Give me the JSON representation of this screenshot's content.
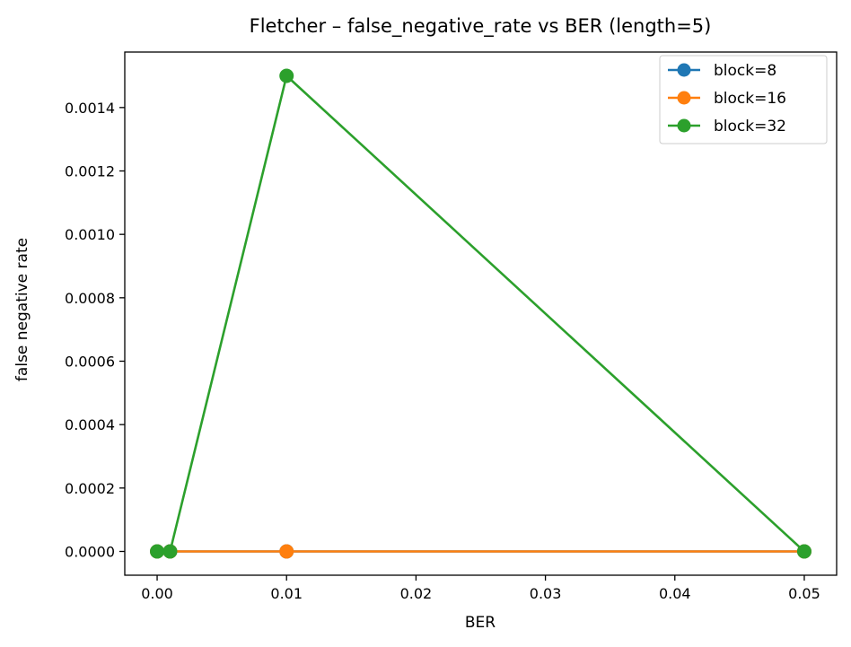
{
  "chart_data": {
    "type": "line",
    "title": "Fletcher – false_negative_rate vs BER (length=5)",
    "xlabel": "BER",
    "ylabel": "false negative rate",
    "xlim": [
      -0.0025,
      0.0525
    ],
    "ylim": [
      -7.5e-05,
      0.001575
    ],
    "xticks": [
      0.0,
      0.01,
      0.02,
      0.03,
      0.04,
      0.05
    ],
    "xtick_labels": [
      "0.00",
      "0.01",
      "0.02",
      "0.03",
      "0.04",
      "0.05"
    ],
    "yticks": [
      0.0,
      0.0002,
      0.0004,
      0.0006,
      0.0008,
      0.001,
      0.0012,
      0.0014
    ],
    "ytick_labels": [
      "0.0000",
      "0.0002",
      "0.0004",
      "0.0006",
      "0.0008",
      "0.0010",
      "0.0012",
      "0.0014"
    ],
    "grid": false,
    "legend_position": "top-right",
    "x": [
      0.0,
      0.001,
      0.01,
      0.05
    ],
    "series": [
      {
        "name": "block=8",
        "color": "#1f77b4",
        "values": [
          0.0,
          0.0,
          0.0,
          0.0
        ]
      },
      {
        "name": "block=16",
        "color": "#ff7f0e",
        "values": [
          0.0,
          0.0,
          0.0,
          0.0
        ]
      },
      {
        "name": "block=32",
        "color": "#2ca02c",
        "values": [
          0.0,
          0.0,
          0.0015,
          0.0
        ]
      }
    ]
  }
}
